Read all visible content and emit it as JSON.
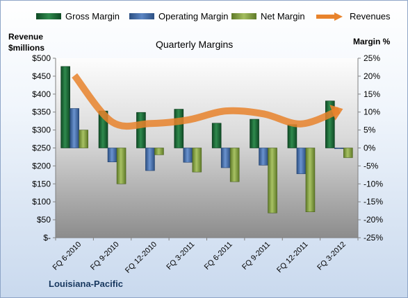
{
  "chart_data": {
    "type": "bar",
    "title": "Quarterly Margins",
    "left_axis_title": [
      "Revenue",
      "$millions"
    ],
    "right_axis_title": "Margin %",
    "company": "Louisiana-Pacific",
    "categories": [
      "FQ 6-2010",
      "FQ 9-2010",
      "FQ 12-2010",
      "FQ 3-2011",
      "FQ 6-2011",
      "FQ 9-2011",
      "FQ 12-2011",
      "FQ 3-2012"
    ],
    "left_ticks": [
      "$500",
      "$450",
      "$400",
      "$350",
      "$300",
      "$250",
      "$200",
      "$150",
      "$100",
      "$50",
      "$-"
    ],
    "right_ticks": [
      "25%",
      "20%",
      "15%",
      "10%",
      "5%",
      "0%",
      "-5%",
      "-10%",
      "-15%",
      "-20%",
      "-25%"
    ],
    "left_ylim": [
      0,
      500
    ],
    "right_ylim": [
      -25,
      25
    ],
    "grid": false,
    "legend_position": "top",
    "series": [
      {
        "name": "Gross Margin",
        "axis": "right",
        "type": "bar",
        "color": "#1e6b3a",
        "values": [
          22.7,
          10.3,
          9.9,
          10.8,
          6.9,
          8.0,
          6.5,
          13.1
        ]
      },
      {
        "name": "Operating Margin",
        "axis": "right",
        "type": "bar",
        "color": "#3f69a6",
        "values": [
          11.0,
          -3.9,
          -6.3,
          -4.0,
          -5.5,
          -4.8,
          -7.2,
          -0.2
        ]
      },
      {
        "name": "Net Margin",
        "axis": "right",
        "type": "bar",
        "color": "#7e9a3d",
        "values": [
          5.0,
          -10.0,
          -1.9,
          -6.7,
          -9.4,
          -18.1,
          -17.8,
          -2.7
        ]
      },
      {
        "name": "Revenues",
        "axis": "left",
        "type": "line",
        "color": "#e8832c",
        "values": [
          452,
          322,
          318,
          328,
          353,
          345,
          317,
          355
        ]
      }
    ]
  }
}
